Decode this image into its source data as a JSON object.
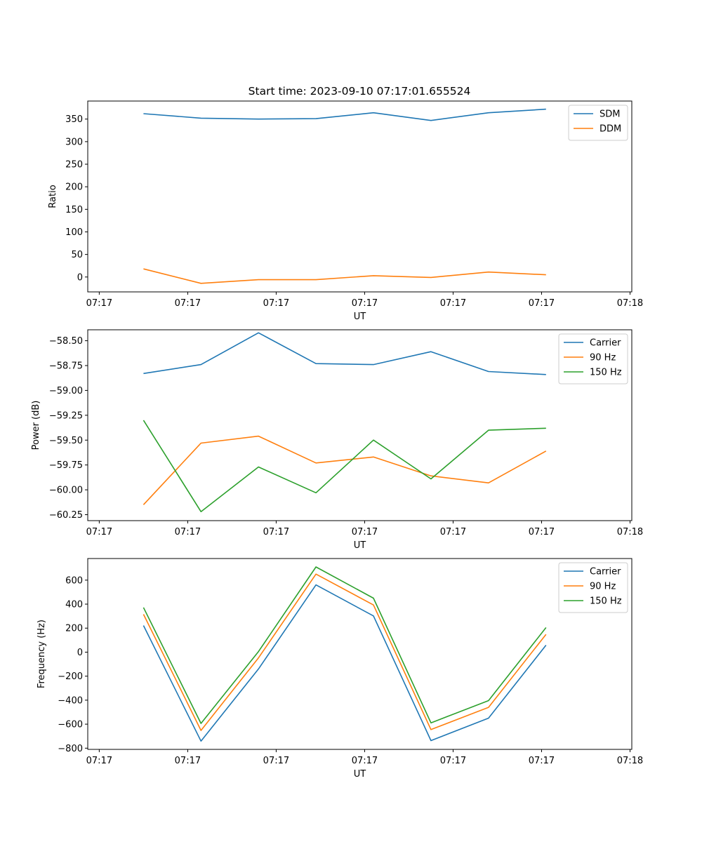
{
  "figure": {
    "title": "Start time: 2023-09-10 07:17:01.655524"
  },
  "chart_data": [
    {
      "type": "line",
      "xlabel": "UT",
      "ylabel": "Ratio",
      "x_tick_labels": [
        "07:17",
        "07:17",
        "07:17",
        "07:17",
        "07:17",
        "07:17",
        "07:18"
      ],
      "x": [
        0.5,
        1.15,
        1.8,
        2.45,
        3.1,
        3.75,
        4.4,
        5.05
      ],
      "xlim": [
        -0.13,
        6.02
      ],
      "ylim": [
        -33,
        390
      ],
      "yticks": [
        0,
        50,
        100,
        150,
        200,
        250,
        300,
        350
      ],
      "y_tick_labels": [
        "0",
        "50",
        "100",
        "150",
        "200",
        "250",
        "300",
        "350"
      ],
      "legend_position": "top-right",
      "series": [
        {
          "name": "SDM",
          "color": "#1f77b4",
          "values": [
            362,
            352,
            350,
            351,
            364,
            347,
            364,
            372
          ]
        },
        {
          "name": "DDM",
          "color": "#ff7f0e",
          "values": [
            18,
            -14,
            -6,
            -6,
            3,
            -1,
            11,
            5
          ]
        }
      ]
    },
    {
      "type": "line",
      "xlabel": "UT",
      "ylabel": "Power (dB)",
      "x_tick_labels": [
        "07:17",
        "07:17",
        "07:17",
        "07:17",
        "07:17",
        "07:17",
        "07:18"
      ],
      "x": [
        0.5,
        1.15,
        1.8,
        2.45,
        3.1,
        3.75,
        4.4,
        5.05
      ],
      "xlim": [
        -0.13,
        6.02
      ],
      "ylim": [
        -60.31,
        -58.39
      ],
      "yticks": [
        -60.25,
        -60.0,
        -59.75,
        -59.5,
        -59.25,
        -59.0,
        -58.75,
        -58.5
      ],
      "y_tick_labels": [
        "−60.25",
        "−60.00",
        "−59.75",
        "−59.50",
        "−59.25",
        "−59.00",
        "−58.75",
        "−58.50"
      ],
      "legend_position": "top-right",
      "series": [
        {
          "name": "Carrier",
          "color": "#1f77b4",
          "values": [
            -58.83,
            -58.74,
            -58.42,
            -58.73,
            -58.74,
            -58.61,
            -58.81,
            -58.84
          ]
        },
        {
          "name": "90 Hz",
          "color": "#ff7f0e",
          "values": [
            -60.15,
            -59.53,
            -59.46,
            -59.73,
            -59.67,
            -59.86,
            -59.93,
            -59.61
          ]
        },
        {
          "name": "150 Hz",
          "color": "#2ca02c",
          "values": [
            -59.3,
            -60.22,
            -59.77,
            -60.03,
            -59.5,
            -59.89,
            -59.4,
            -59.38
          ]
        }
      ]
    },
    {
      "type": "line",
      "xlabel": "UT",
      "ylabel": "Frequency (Hz)",
      "x_tick_labels": [
        "07:17",
        "07:17",
        "07:17",
        "07:17",
        "07:17",
        "07:17",
        "07:18"
      ],
      "x": [
        0.5,
        1.15,
        1.8,
        2.45,
        3.1,
        3.75,
        4.4,
        5.05
      ],
      "xlim": [
        -0.13,
        6.02
      ],
      "ylim": [
        -810,
        780
      ],
      "yticks": [
        -800,
        -600,
        -400,
        -200,
        0,
        200,
        400,
        600
      ],
      "y_tick_labels": [
        "−800",
        "−600",
        "−400",
        "−200",
        "0",
        "200",
        "400",
        "600"
      ],
      "legend_position": "top-right",
      "series": [
        {
          "name": "Carrier",
          "color": "#1f77b4",
          "values": [
            222,
            -741,
            -140,
            560,
            302,
            -737,
            -550,
            58
          ]
        },
        {
          "name": "90 Hz",
          "color": "#ff7f0e",
          "values": [
            315,
            -652,
            -48,
            650,
            393,
            -645,
            -460,
            148
          ]
        },
        {
          "name": "150 Hz",
          "color": "#2ca02c",
          "values": [
            372,
            -594,
            5,
            710,
            450,
            -589,
            -404,
            205
          ]
        }
      ]
    }
  ]
}
